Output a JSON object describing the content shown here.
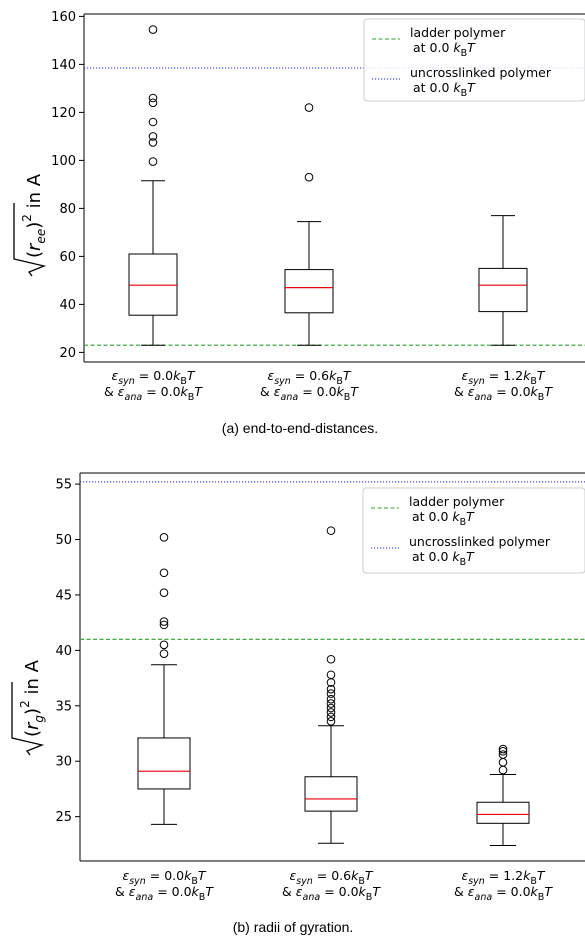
{
  "chart_data": [
    {
      "type": "box",
      "caption": "(a) end-to-end-distances.",
      "ylabel_radicand": "(r",
      "ylabel_sub": "ee",
      "ylabel_tail": ")",
      "ylabel_sup": "2",
      "ylabel_unit": " in A",
      "ylim": [
        16,
        161
      ],
      "yticks": [
        20,
        40,
        60,
        80,
        100,
        120,
        140,
        160
      ],
      "categories": [
        {
          "line1_parts": [
            {
              "t": "ε",
              "i": true
            },
            {
              "t": "syn",
              "sub": true,
              "i": true
            },
            {
              "t": " = 0.0"
            },
            {
              "t": "k",
              "i": true
            },
            {
              "t": "B",
              "sub": true
            },
            {
              "t": "T",
              "i": true
            }
          ],
          "line2_parts": [
            {
              "t": "& "
            },
            {
              "t": "ε",
              "i": true
            },
            {
              "t": "ana",
              "sub": true,
              "i": true
            },
            {
              "t": " = 0.0"
            },
            {
              "t": "k",
              "i": true
            },
            {
              "t": "B",
              "sub": true
            },
            {
              "t": "T",
              "i": true
            }
          ]
        },
        {
          "line1_parts": [
            {
              "t": "ε",
              "i": true
            },
            {
              "t": "syn",
              "sub": true,
              "i": true
            },
            {
              "t": " = 0.6"
            },
            {
              "t": "k",
              "i": true
            },
            {
              "t": "B",
              "sub": true
            },
            {
              "t": "T",
              "i": true
            }
          ],
          "line2_parts": [
            {
              "t": "& "
            },
            {
              "t": "ε",
              "i": true
            },
            {
              "t": "ana",
              "sub": true,
              "i": true
            },
            {
              "t": " = 0.0"
            },
            {
              "t": "k",
              "i": true
            },
            {
              "t": "B",
              "sub": true
            },
            {
              "t": "T",
              "i": true
            }
          ]
        },
        {
          "line1_parts": [
            {
              "t": "ε",
              "i": true
            },
            {
              "t": "syn",
              "sub": true,
              "i": true
            },
            {
              "t": " = 1.2"
            },
            {
              "t": "k",
              "i": true
            },
            {
              "t": "B",
              "sub": true
            },
            {
              "t": "T",
              "i": true
            }
          ],
          "line2_parts": [
            {
              "t": "& "
            },
            {
              "t": "ε",
              "i": true
            },
            {
              "t": "ana",
              "sub": true,
              "i": true
            },
            {
              "t": " = 0.0"
            },
            {
              "t": "k",
              "i": true
            },
            {
              "t": "B",
              "sub": true
            },
            {
              "t": "T",
              "i": true
            }
          ]
        }
      ],
      "boxes": [
        {
          "whisker_low": 23,
          "q1": 35.5,
          "median": 48,
          "q3": 61,
          "whisker_high": 91.5,
          "outliers": [
            99.5,
            107.5,
            110,
            116,
            124,
            126,
            154.5
          ]
        },
        {
          "whisker_low": 23,
          "q1": 36.5,
          "median": 47,
          "q3": 54.5,
          "whisker_high": 74.5,
          "outliers": [
            93,
            122
          ]
        },
        {
          "whisker_low": 23,
          "q1": 37,
          "median": 48,
          "q3": 55,
          "whisker_high": 77,
          "outliers": []
        }
      ],
      "hlines": [
        {
          "label": "ladder polymer",
          "label2_prefix": "at 0.0 ",
          "value": 23,
          "color": "#2ca02c",
          "style": "dashed"
        },
        {
          "label": "uncrosslinked polymer",
          "label2_prefix": "at 0.0 ",
          "value": 138.5,
          "color": "#2222dd",
          "style": "dotted"
        }
      ],
      "legend_position": "top-right",
      "box_color": "#000000",
      "median_color": "#e8000b"
    },
    {
      "type": "box",
      "caption": "(b) radii of gyration.",
      "ylabel_radicand": "(r",
      "ylabel_sub": "g",
      "ylabel_tail": ")",
      "ylabel_sup": "2",
      "ylabel_unit": " in A",
      "ylim": [
        21,
        56
      ],
      "yticks": [
        25,
        30,
        35,
        40,
        45,
        50,
        55
      ],
      "categories": [
        {
          "line1_parts": [
            {
              "t": "ε",
              "i": true
            },
            {
              "t": "syn",
              "sub": true,
              "i": true
            },
            {
              "t": " = 0.0"
            },
            {
              "t": "k",
              "i": true
            },
            {
              "t": "B",
              "sub": true
            },
            {
              "t": "T",
              "i": true
            }
          ],
          "line2_parts": [
            {
              "t": "& "
            },
            {
              "t": "ε",
              "i": true
            },
            {
              "t": "ana",
              "sub": true,
              "i": true
            },
            {
              "t": " = 0.0"
            },
            {
              "t": "k",
              "i": true
            },
            {
              "t": "B",
              "sub": true
            },
            {
              "t": "T",
              "i": true
            }
          ]
        },
        {
          "line1_parts": [
            {
              "t": "ε",
              "i": true
            },
            {
              "t": "syn",
              "sub": true,
              "i": true
            },
            {
              "t": " = 0.6"
            },
            {
              "t": "k",
              "i": true
            },
            {
              "t": "B",
              "sub": true
            },
            {
              "t": "T",
              "i": true
            }
          ],
          "line2_parts": [
            {
              "t": "& "
            },
            {
              "t": "ε",
              "i": true
            },
            {
              "t": "ana",
              "sub": true,
              "i": true
            },
            {
              "t": " = 0.0"
            },
            {
              "t": "k",
              "i": true
            },
            {
              "t": "B",
              "sub": true
            },
            {
              "t": "T",
              "i": true
            }
          ]
        },
        {
          "line1_parts": [
            {
              "t": "ε",
              "i": true
            },
            {
              "t": "syn",
              "sub": true,
              "i": true
            },
            {
              "t": " = 1.2"
            },
            {
              "t": "k",
              "i": true
            },
            {
              "t": "B",
              "sub": true
            },
            {
              "t": "T",
              "i": true
            }
          ],
          "line2_parts": [
            {
              "t": "& "
            },
            {
              "t": "ε",
              "i": true
            },
            {
              "t": "ana",
              "sub": true,
              "i": true
            },
            {
              "t": " = 0.0"
            },
            {
              "t": "k",
              "i": true
            },
            {
              "t": "B",
              "sub": true
            },
            {
              "t": "T",
              "i": true
            }
          ]
        }
      ],
      "boxes": [
        {
          "whisker_low": 24.3,
          "q1": 27.5,
          "median": 29.1,
          "q3": 32.1,
          "whisker_high": 38.7,
          "outliers": [
            39.7,
            40.5,
            42.3,
            42.6,
            45.2,
            47,
            50.2
          ]
        },
        {
          "whisker_low": 22.6,
          "q1": 25.5,
          "median": 26.6,
          "q3": 28.6,
          "whisker_high": 33.2,
          "outliers": [
            33.6,
            34,
            34.4,
            34.8,
            35.2,
            35.6,
            36.1,
            36.5,
            37.1,
            37.8,
            39.2,
            50.8
          ]
        },
        {
          "whisker_low": 22.4,
          "q1": 24.4,
          "median": 25.2,
          "q3": 26.3,
          "whisker_high": 28.8,
          "outliers": [
            29.2,
            29.9,
            30.6,
            30.9,
            31.1
          ]
        }
      ],
      "hlines": [
        {
          "label": "ladder polymer",
          "label2_prefix": "at 0.0 ",
          "value": 41,
          "color": "#2ca02c",
          "style": "dashed"
        },
        {
          "label": "uncrosslinked polymer",
          "label2_prefix": "at 0.0 ",
          "value": 55.2,
          "color": "#2222dd",
          "style": "dotted"
        }
      ],
      "legend_position": "top-right",
      "box_color": "#000000",
      "median_color": "#e8000b"
    }
  ]
}
